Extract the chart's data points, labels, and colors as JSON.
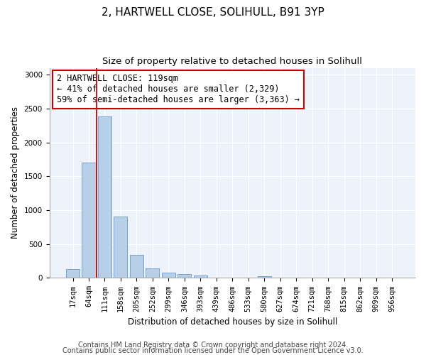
{
  "title1": "2, HARTWELL CLOSE, SOLIHULL, B91 3YP",
  "title2": "Size of property relative to detached houses in Solihull",
  "xlabel": "Distribution of detached houses by size in Solihull",
  "ylabel": "Number of detached properties",
  "categories": [
    "17sqm",
    "64sqm",
    "111sqm",
    "158sqm",
    "205sqm",
    "252sqm",
    "299sqm",
    "346sqm",
    "393sqm",
    "439sqm",
    "486sqm",
    "533sqm",
    "580sqm",
    "627sqm",
    "674sqm",
    "721sqm",
    "768sqm",
    "815sqm",
    "862sqm",
    "909sqm",
    "956sqm"
  ],
  "values": [
    130,
    1700,
    2380,
    910,
    345,
    140,
    80,
    55,
    40,
    0,
    0,
    0,
    30,
    0,
    0,
    0,
    0,
    0,
    0,
    0,
    0
  ],
  "bar_color": "#b8cfe8",
  "bar_edgecolor": "#6699cc",
  "vline_x_index": 1.5,
  "vline_color": "#cc0000",
  "annotation_line1": "2 HARTWELL CLOSE: 119sqm",
  "annotation_line2": "← 41% of detached houses are smaller (2,329)",
  "annotation_line3": "59% of semi-detached houses are larger (3,363) →",
  "annotation_box_edgecolor": "#cc0000",
  "ylim": [
    0,
    3100
  ],
  "yticks": [
    0,
    500,
    1000,
    1500,
    2000,
    2500,
    3000
  ],
  "footer1": "Contains HM Land Registry data © Crown copyright and database right 2024.",
  "footer2": "Contains public sector information licensed under the Open Government Licence v3.0.",
  "plot_bg_color": "#eef2fa",
  "grid_color": "#ffffff",
  "title1_fontsize": 11,
  "title2_fontsize": 9.5,
  "axis_label_fontsize": 8.5,
  "tick_fontsize": 7.5,
  "footer_fontsize": 7,
  "annotation_fontsize": 8.5
}
